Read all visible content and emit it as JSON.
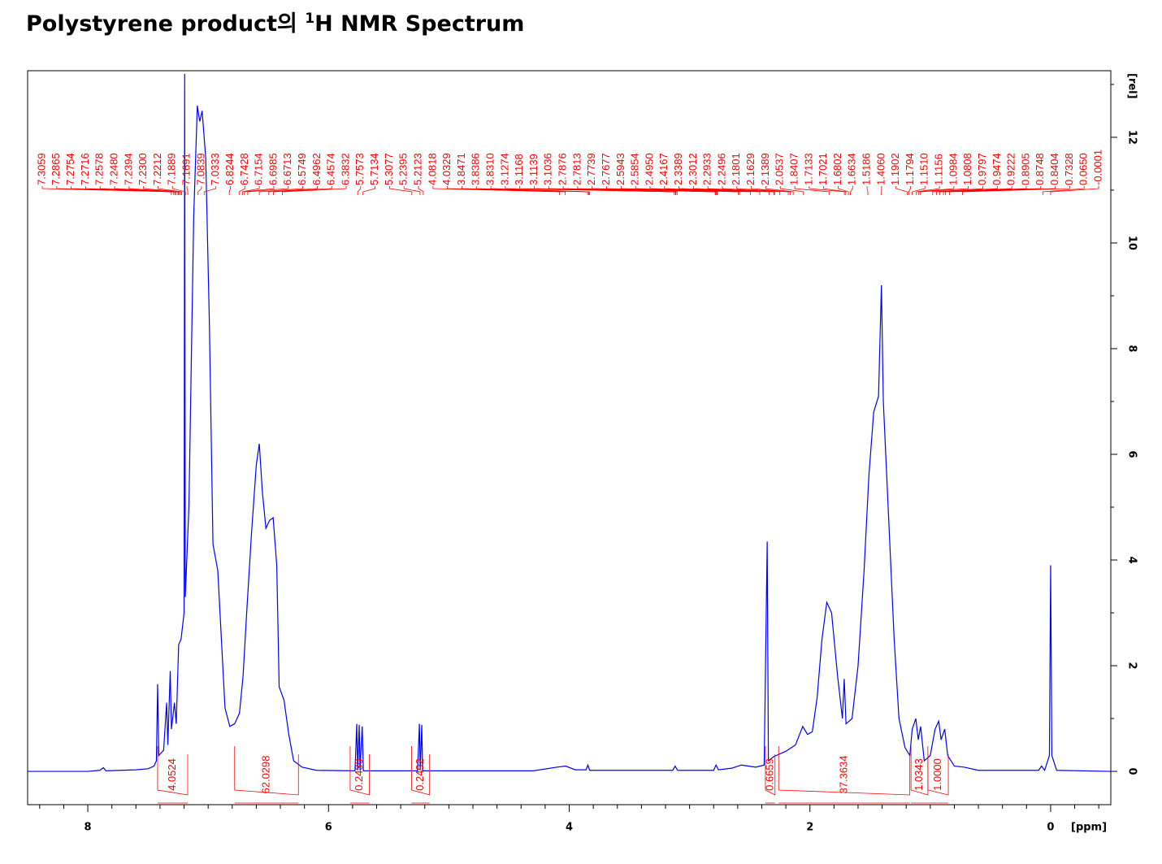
{
  "chart_data": {
    "type": "nmr",
    "title": {
      "before": "Polystyrene product의 ",
      "superscript": "1",
      "after": "H NMR Spectrum"
    },
    "xlabel": "[ppm]",
    "ylabel": "[rel]",
    "xlim": [
      8.5,
      -0.5
    ],
    "ylim": [
      -0.63,
      13.26
    ],
    "xticks": [
      8,
      6,
      4,
      2,
      0
    ],
    "xminor": [
      8.4,
      8.2,
      7.8,
      7.6,
      7.4,
      7.2,
      7.0,
      6.8,
      6.6,
      6.4,
      6.2,
      5.8,
      5.6,
      5.4,
      5.2,
      5.0,
      4.8,
      4.6,
      4.4,
      4.2,
      3.8,
      3.6,
      3.4,
      3.2,
      3.0,
      2.8,
      2.6,
      2.4,
      2.2,
      1.8,
      1.6,
      1.4,
      1.2,
      1.0,
      0.8,
      0.6,
      0.4,
      0.2,
      -0.2,
      -0.4
    ],
    "yticks": [
      0,
      2,
      4,
      6,
      8,
      10,
      12
    ],
    "yminor": [
      1,
      3,
      5,
      7,
      9,
      11,
      13
    ],
    "color": "#0000ff",
    "x": [
      8.5,
      8.0,
      7.9,
      7.87,
      7.85,
      7.6,
      7.5,
      7.45,
      7.43,
      7.42,
      7.41,
      7.37,
      7.345,
      7.335,
      7.315,
      7.305,
      7.28,
      7.265,
      7.245,
      7.225,
      7.2,
      7.195,
      7.19,
      7.16,
      7.12,
      7.09,
      7.07,
      7.05,
      7.02,
      6.99,
      6.96,
      6.92,
      6.89,
      6.86,
      6.82,
      6.78,
      6.74,
      6.71,
      6.68,
      6.64,
      6.6,
      6.575,
      6.55,
      6.52,
      6.49,
      6.46,
      6.43,
      6.41,
      6.37,
      6.33,
      6.29,
      6.22,
      6.1,
      5.78,
      5.765,
      5.758,
      5.745,
      5.738,
      5.72,
      5.71,
      5.26,
      5.245,
      5.238,
      5.225,
      5.218,
      4.3,
      4.1,
      4.03,
      3.95,
      3.86,
      3.845,
      3.83,
      3.14,
      3.12,
      3.1,
      2.8,
      2.78,
      2.76,
      2.65,
      2.57,
      2.45,
      2.38,
      2.355,
      2.345,
      2.3,
      2.2,
      2.12,
      2.06,
      2.02,
      1.98,
      1.94,
      1.9,
      1.86,
      1.82,
      1.77,
      1.73,
      1.715,
      1.7,
      1.65,
      1.6,
      1.55,
      1.51,
      1.47,
      1.43,
      1.406,
      1.39,
      1.35,
      1.3,
      1.26,
      1.21,
      1.17,
      1.15,
      1.12,
      1.1,
      1.08,
      1.05,
      1.0,
      0.96,
      0.93,
      0.91,
      0.88,
      0.855,
      0.8,
      0.72,
      0.6,
      0.1,
      0.075,
      0.05,
      0.01,
      0.0,
      -0.01,
      -0.05,
      -0.5
    ],
    "values": [
      0,
      0,
      0.02,
      0.07,
      0.01,
      0.03,
      0.05,
      0.1,
      0.2,
      1.65,
      0.3,
      0.4,
      1.3,
      0.5,
      1.9,
      0.8,
      1.3,
      0.9,
      2.4,
      2.5,
      3.0,
      13.2,
      3.3,
      5.0,
      10.5,
      12.6,
      12.3,
      12.5,
      11.6,
      8.5,
      4.3,
      3.8,
      2.5,
      1.2,
      0.85,
      0.9,
      1.1,
      1.8,
      3.0,
      4.5,
      5.8,
      6.2,
      5.3,
      4.6,
      4.75,
      4.8,
      3.9,
      1.6,
      1.35,
      0.7,
      0.2,
      0.08,
      0.02,
      0.01,
      0.9,
      0.02,
      0.88,
      0.02,
      0.85,
      0.01,
      0.01,
      0.9,
      0.02,
      0.88,
      0.01,
      0.01,
      0.08,
      0.1,
      0.03,
      0.03,
      0.12,
      0.02,
      0.02,
      0.1,
      0.02,
      0.02,
      0.12,
      0.03,
      0.06,
      0.12,
      0.08,
      0.12,
      4.35,
      0.2,
      0.28,
      0.38,
      0.5,
      0.85,
      0.7,
      0.75,
      1.4,
      2.5,
      3.2,
      3.0,
      1.8,
      1.0,
      1.75,
      0.9,
      1.0,
      2.0,
      3.8,
      5.6,
      6.8,
      7.1,
      9.2,
      7.0,
      5.0,
      2.5,
      1.0,
      0.45,
      0.3,
      0.8,
      1.0,
      0.6,
      0.85,
      0.2,
      0.3,
      0.8,
      0.95,
      0.6,
      0.8,
      0.3,
      0.1,
      0.08,
      0.02,
      0.02,
      0.1,
      0.02,
      0.3,
      3.9,
      0.3,
      0.02,
      0
    ],
    "peaks": {
      "values": [
        7.3059,
        7.2865,
        7.2754,
        7.2716,
        7.2578,
        7.248,
        7.2394,
        7.23,
        7.2212,
        7.1889,
        7.1691,
        7.0839,
        7.0333,
        6.8244,
        6.7428,
        6.7154,
        6.6985,
        6.6713,
        6.5749,
        6.4962,
        6.4574,
        6.3832,
        5.7573,
        5.7134,
        5.3077,
        5.2395,
        5.2123,
        4.0818,
        4.0329,
        3.8471,
        3.8386,
        3.831,
        3.1274,
        3.1168,
        3.1139,
        3.1036,
        2.7876,
        2.7813,
        2.7739,
        2.7677,
        2.5943,
        2.5854,
        2.495,
        2.4167,
        2.3389,
        2.3012,
        2.2933,
        2.2496,
        2.1801,
        2.1629,
        2.1389,
        2.0537,
        1.8407,
        1.7133,
        1.7021,
        1.6802,
        1.6634,
        1.5186,
        1.406,
        1.1902,
        1.1794,
        1.151,
        1.1156,
        1.0984,
        1.0808,
        0.9797,
        0.9474,
        0.9222,
        0.8905,
        0.8748,
        0.8404,
        0.7328,
        0.065,
        -0.0001
      ],
      "value_labels": [
        "7.3059",
        "7.2865",
        "7.2754",
        "7.2716",
        "7.2578",
        "7.2480",
        "7.2394",
        "7.2300",
        "7.2212",
        "7.1889",
        "7.1691",
        "7.0839",
        "7.0333",
        "6.8244",
        "6.7428",
        "6.7154",
        "6.6985",
        "6.6713",
        "6.5749",
        "6.4962",
        "6.4574",
        "6.3832",
        "5.7573",
        "5.7134",
        "5.3077",
        "5.2395",
        "5.2123",
        "4.0818",
        "4.0329",
        "3.8471",
        "3.8386",
        "3.8310",
        "3.1274",
        "3.1168",
        "3.1139",
        "3.1036",
        "2.7876",
        "2.7813",
        "2.7739",
        "2.7677",
        "2.5943",
        "2.5854",
        "2.4950",
        "2.4167",
        "2.3389",
        "2.3012",
        "2.2933",
        "2.2496",
        "2.1801",
        "2.1629",
        "2.1389",
        "2.0537",
        "1.8407",
        "1.7133",
        "1.7021",
        "1.6802",
        "1.6634",
        "1.5186",
        "1.4060",
        "1.1902",
        "1.1794",
        "1.1510",
        "1.1156",
        "1.0984",
        "1.0808",
        "0.9797",
        "0.9474",
        "0.9222",
        "0.8905",
        "0.8748",
        "0.8404",
        "0.7328",
        "0.0650",
        "-0.0001"
      ]
    },
    "integrals": {
      "ranges": [
        [
          7.42,
          7.17
        ],
        [
          6.78,
          6.25
        ],
        [
          5.82,
          5.66
        ],
        [
          5.31,
          5.16
        ],
        [
          2.37,
          2.29
        ],
        [
          2.26,
          1.17
        ],
        [
          1.16,
          1.02
        ],
        [
          1.02,
          0.85
        ]
      ],
      "values": [
        4.0524,
        62.0298,
        0.243,
        0.2492,
        0.6659,
        37.3634,
        1.0343,
        1.0
      ],
      "value_labels": [
        "4.0524",
        "62.0298",
        "0.2430",
        "0.2492",
        "0.6659",
        "37.3634",
        "1.0343",
        "1.0000"
      ]
    }
  }
}
